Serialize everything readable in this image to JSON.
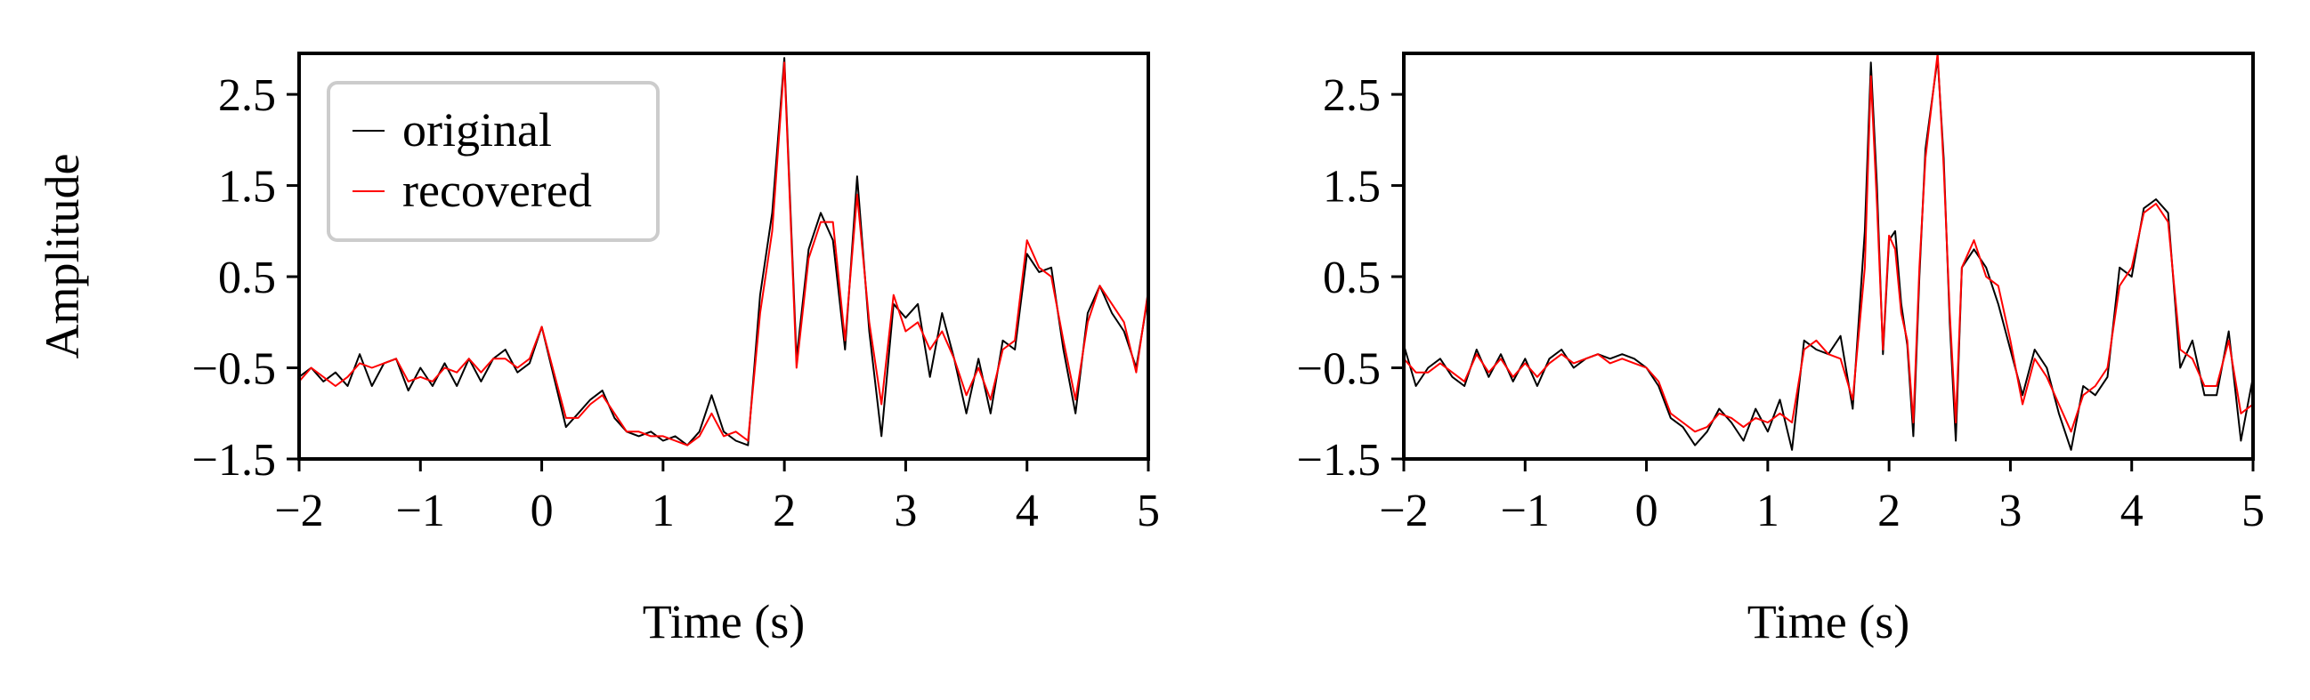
{
  "colors": {
    "original": "#000000",
    "recovered": "#ff0000",
    "legend_border": "#cccccc"
  },
  "chart_data": [
    {
      "type": "line",
      "panel": "left",
      "title": "",
      "xlabel": "Time (s)",
      "ylabel": "Amplitude",
      "xlim": [
        -2,
        5
      ],
      "ylim": [
        -1.5,
        2.95
      ],
      "xticks": [
        -2,
        -1,
        0,
        1,
        2,
        3,
        4,
        5
      ],
      "xtick_labels": [
        "−2",
        "−1",
        "0",
        "1",
        "2",
        "3",
        "4",
        "5"
      ],
      "yticks": [
        -1.5,
        -0.5,
        0.5,
        1.5,
        2.5
      ],
      "ytick_labels": [
        "−1.5",
        "−0.5",
        "0.5",
        "1.5",
        "2.5"
      ],
      "legend": {
        "placement": "top-left",
        "entries": [
          "original",
          "recovered"
        ]
      },
      "series": [
        {
          "name": "original",
          "x": [
            -2.0,
            -1.9,
            -1.8,
            -1.7,
            -1.6,
            -1.5,
            -1.4,
            -1.3,
            -1.2,
            -1.1,
            -1.0,
            -0.9,
            -0.8,
            -0.7,
            -0.6,
            -0.5,
            -0.4,
            -0.3,
            -0.2,
            -0.1,
            0.0,
            0.1,
            0.2,
            0.3,
            0.4,
            0.5,
            0.6,
            0.7,
            0.8,
            0.9,
            1.0,
            1.1,
            1.2,
            1.3,
            1.4,
            1.5,
            1.6,
            1.7,
            1.8,
            1.9,
            2.0,
            2.1,
            2.2,
            2.3,
            2.4,
            2.5,
            2.6,
            2.7,
            2.8,
            2.9,
            3.0,
            3.1,
            3.2,
            3.3,
            3.4,
            3.5,
            3.6,
            3.7,
            3.8,
            3.9,
            4.0,
            4.1,
            4.2,
            4.3,
            4.4,
            4.5,
            4.6,
            4.7,
            4.8,
            4.9,
            5.0
          ],
          "y": [
            -0.6,
            -0.5,
            -0.65,
            -0.55,
            -0.7,
            -0.35,
            -0.7,
            -0.45,
            -0.4,
            -0.75,
            -0.5,
            -0.7,
            -0.45,
            -0.7,
            -0.4,
            -0.65,
            -0.4,
            -0.3,
            -0.55,
            -0.45,
            -0.05,
            -0.6,
            -1.15,
            -1.0,
            -0.85,
            -0.75,
            -1.05,
            -1.2,
            -1.25,
            -1.2,
            -1.3,
            -1.25,
            -1.35,
            -1.2,
            -0.8,
            -1.2,
            -1.3,
            -1.35,
            0.3,
            1.2,
            2.9,
            -0.4,
            0.8,
            1.2,
            0.9,
            -0.3,
            1.6,
            -0.1,
            -1.25,
            0.2,
            0.05,
            0.2,
            -0.6,
            0.1,
            -0.4,
            -1.0,
            -0.4,
            -1.0,
            -0.2,
            -0.3,
            0.75,
            0.55,
            0.6,
            -0.3,
            -1.0,
            0.1,
            0.4,
            0.1,
            -0.1,
            -0.5,
            0.3
          ]
        },
        {
          "name": "recovered",
          "x": [
            -2.0,
            -1.9,
            -1.8,
            -1.7,
            -1.6,
            -1.5,
            -1.4,
            -1.3,
            -1.2,
            -1.1,
            -1.0,
            -0.9,
            -0.8,
            -0.7,
            -0.6,
            -0.5,
            -0.4,
            -0.3,
            -0.2,
            -0.1,
            0.0,
            0.1,
            0.2,
            0.3,
            0.4,
            0.5,
            0.6,
            0.7,
            0.8,
            0.9,
            1.0,
            1.1,
            1.2,
            1.3,
            1.4,
            1.5,
            1.6,
            1.7,
            1.8,
            1.9,
            2.0,
            2.1,
            2.2,
            2.3,
            2.4,
            2.5,
            2.6,
            2.7,
            2.8,
            2.9,
            3.0,
            3.1,
            3.2,
            3.3,
            3.4,
            3.5,
            3.6,
            3.7,
            3.8,
            3.9,
            4.0,
            4.1,
            4.2,
            4.3,
            4.4,
            4.5,
            4.6,
            4.7,
            4.8,
            4.9,
            5.0
          ],
          "y": [
            -0.65,
            -0.5,
            -0.6,
            -0.7,
            -0.6,
            -0.45,
            -0.5,
            -0.45,
            -0.4,
            -0.65,
            -0.6,
            -0.65,
            -0.5,
            -0.55,
            -0.4,
            -0.55,
            -0.4,
            -0.4,
            -0.5,
            -0.4,
            -0.05,
            -0.55,
            -1.05,
            -1.05,
            -0.9,
            -0.8,
            -1.0,
            -1.2,
            -1.2,
            -1.25,
            -1.25,
            -1.3,
            -1.35,
            -1.25,
            -1.0,
            -1.25,
            -1.2,
            -1.3,
            0.1,
            1.0,
            2.85,
            -0.5,
            0.7,
            1.1,
            1.1,
            -0.2,
            1.4,
            0.0,
            -0.9,
            0.3,
            -0.1,
            0.0,
            -0.3,
            -0.1,
            -0.4,
            -0.8,
            -0.5,
            -0.85,
            -0.3,
            -0.2,
            0.9,
            0.6,
            0.5,
            -0.2,
            -0.85,
            0.0,
            0.4,
            0.2,
            0.0,
            -0.55,
            0.35
          ]
        }
      ]
    },
    {
      "type": "line",
      "panel": "right",
      "title": "",
      "xlabel": "Time (s)",
      "ylabel": "",
      "xlim": [
        -2,
        5
      ],
      "ylim": [
        -1.5,
        2.95
      ],
      "xticks": [
        -2,
        -1,
        0,
        1,
        2,
        3,
        4,
        5
      ],
      "xtick_labels": [
        "−2",
        "−1",
        "0",
        "1",
        "2",
        "3",
        "4",
        "5"
      ],
      "yticks": [
        -1.5,
        -0.5,
        0.5,
        1.5,
        2.5
      ],
      "ytick_labels": [
        "−1.5",
        "−0.5",
        "0.5",
        "1.5",
        "2.5"
      ],
      "series": [
        {
          "name": "original",
          "x": [
            -2.0,
            -1.9,
            -1.8,
            -1.7,
            -1.6,
            -1.5,
            -1.4,
            -1.3,
            -1.2,
            -1.1,
            -1.0,
            -0.9,
            -0.8,
            -0.7,
            -0.6,
            -0.5,
            -0.4,
            -0.3,
            -0.2,
            -0.1,
            0.0,
            0.1,
            0.2,
            0.3,
            0.4,
            0.5,
            0.6,
            0.7,
            0.8,
            0.9,
            1.0,
            1.1,
            1.2,
            1.3,
            1.4,
            1.5,
            1.6,
            1.7,
            1.8,
            1.85,
            1.9,
            1.95,
            2.0,
            2.05,
            2.1,
            2.15,
            2.2,
            2.25,
            2.3,
            2.4,
            2.45,
            2.5,
            2.55,
            2.6,
            2.7,
            2.8,
            2.9,
            3.0,
            3.1,
            3.2,
            3.3,
            3.4,
            3.5,
            3.6,
            3.7,
            3.8,
            3.9,
            4.0,
            4.1,
            4.2,
            4.3,
            4.4,
            4.5,
            4.6,
            4.7,
            4.8,
            4.9,
            5.0
          ],
          "y": [
            -0.25,
            -0.7,
            -0.5,
            -0.4,
            -0.6,
            -0.7,
            -0.3,
            -0.6,
            -0.35,
            -0.65,
            -0.4,
            -0.7,
            -0.4,
            -0.3,
            -0.5,
            -0.4,
            -0.35,
            -0.4,
            -0.35,
            -0.4,
            -0.5,
            -0.7,
            -1.05,
            -1.15,
            -1.35,
            -1.2,
            -0.95,
            -1.1,
            -1.3,
            -0.95,
            -1.2,
            -0.85,
            -1.4,
            -0.2,
            -0.3,
            -0.35,
            -0.15,
            -0.95,
            1.0,
            2.85,
            1.5,
            -0.35,
            0.9,
            1.0,
            0.2,
            -0.25,
            -1.25,
            0.5,
            1.9,
            2.9,
            1.8,
            0.0,
            -1.3,
            0.6,
            0.8,
            0.6,
            0.2,
            -0.3,
            -0.8,
            -0.3,
            -0.5,
            -1.0,
            -1.4,
            -0.7,
            -0.8,
            -0.6,
            0.6,
            0.5,
            1.25,
            1.35,
            1.2,
            -0.5,
            -0.2,
            -0.8,
            -0.8,
            -0.1,
            -1.3,
            -0.6
          ]
        },
        {
          "name": "recovered",
          "x": [
            -2.0,
            -1.9,
            -1.8,
            -1.7,
            -1.6,
            -1.5,
            -1.4,
            -1.3,
            -1.2,
            -1.1,
            -1.0,
            -0.9,
            -0.8,
            -0.7,
            -0.6,
            -0.5,
            -0.4,
            -0.3,
            -0.2,
            -0.1,
            0.0,
            0.1,
            0.2,
            0.3,
            0.4,
            0.5,
            0.6,
            0.7,
            0.8,
            0.9,
            1.0,
            1.1,
            1.2,
            1.3,
            1.4,
            1.5,
            1.6,
            1.7,
            1.8,
            1.85,
            1.9,
            1.95,
            2.0,
            2.05,
            2.1,
            2.15,
            2.2,
            2.25,
            2.3,
            2.4,
            2.45,
            2.5,
            2.55,
            2.6,
            2.7,
            2.8,
            2.9,
            3.0,
            3.1,
            3.2,
            3.3,
            3.4,
            3.5,
            3.6,
            3.7,
            3.8,
            3.9,
            4.0,
            4.1,
            4.2,
            4.3,
            4.4,
            4.5,
            4.6,
            4.7,
            4.8,
            4.9,
            5.0
          ],
          "y": [
            -0.4,
            -0.55,
            -0.55,
            -0.45,
            -0.55,
            -0.65,
            -0.35,
            -0.55,
            -0.4,
            -0.6,
            -0.45,
            -0.6,
            -0.45,
            -0.35,
            -0.45,
            -0.4,
            -0.35,
            -0.45,
            -0.4,
            -0.45,
            -0.5,
            -0.65,
            -1.0,
            -1.1,
            -1.2,
            -1.15,
            -1.0,
            -1.05,
            -1.15,
            -1.05,
            -1.1,
            -1.0,
            -1.1,
            -0.3,
            -0.2,
            -0.35,
            -0.4,
            -0.85,
            0.6,
            2.7,
            1.3,
            -0.3,
            0.95,
            0.8,
            0.1,
            -0.2,
            -1.1,
            0.6,
            1.8,
            2.95,
            1.7,
            0.1,
            -1.1,
            0.6,
            0.9,
            0.5,
            0.4,
            -0.2,
            -0.9,
            -0.4,
            -0.6,
            -0.9,
            -1.2,
            -0.8,
            -0.7,
            -0.5,
            0.4,
            0.6,
            1.2,
            1.3,
            1.1,
            -0.3,
            -0.4,
            -0.7,
            -0.7,
            -0.2,
            -1.0,
            -0.9
          ]
        }
      ]
    }
  ]
}
